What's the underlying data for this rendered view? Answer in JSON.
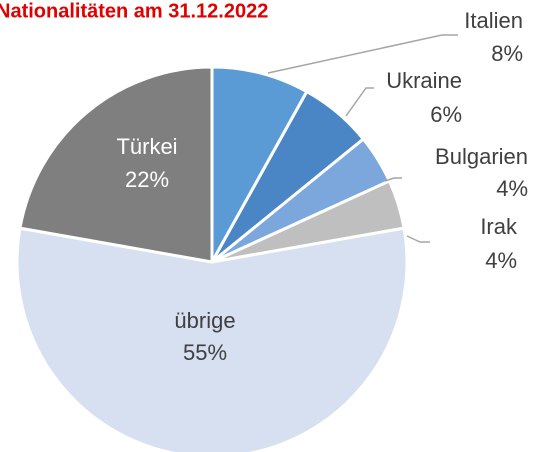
{
  "chart_data": {
    "type": "pie",
    "title": "Nationalitäten am 31.12.2022",
    "categories": [
      "Italien",
      "Ukraine",
      "Bulgarien",
      "Irak",
      "übrige",
      "Türkei"
    ],
    "values": [
      8,
      6,
      4,
      4,
      55,
      22
    ],
    "value_labels": [
      "8%",
      "6%",
      "4%",
      "4%",
      "55%",
      "22%"
    ],
    "colors": [
      "#5b9bd5",
      "#4a86c5",
      "#7ba7dd",
      "#bfbfbf",
      "#d6e0f1",
      "#7f7f7f"
    ]
  }
}
